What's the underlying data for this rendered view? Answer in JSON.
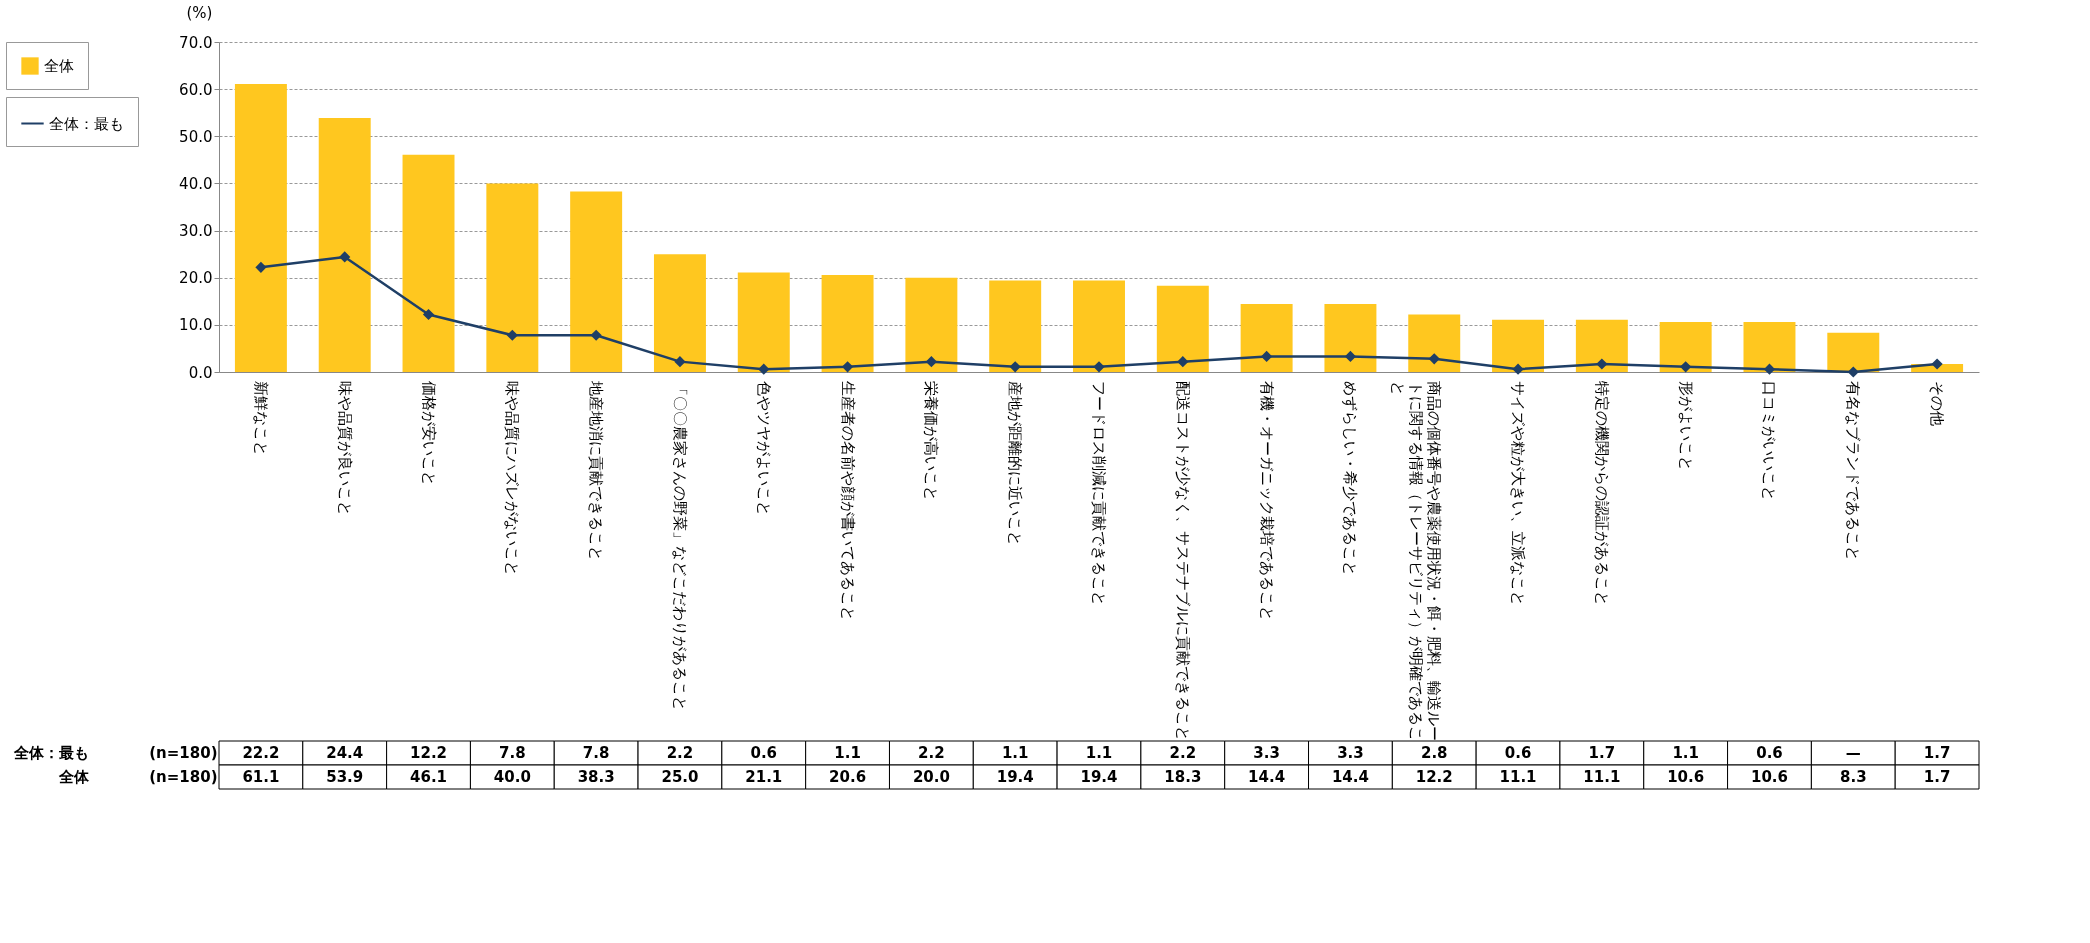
{
  "chart_data": {
    "type": "bar",
    "categories": [
      "新鮮なこと",
      "味や品質が良いこと",
      "価格が安いこと",
      "味や品質にハズレがないこと",
      "地産地消に貢献できること",
      "「〇〇農家さんの野菜」などこだわりがあること",
      "色やツヤがよいこと",
      "生産者の名前や顔が書いてあること",
      "栄養価が高いこと",
      "産地が距離的に近いこと",
      "フードロス削減に貢献できること",
      "配送コストが少なく、サステナブルに貢献できること",
      "有機・オーガニック栽培であること",
      "めずらしい・希少であること",
      "商品の個体番号や農薬使用状況・餌・肥料、輸送ルートに関する情報（トレーサビリティ）が明確であること",
      "サイズや粒が大きい、立派なこと",
      "特定の機関からの認証があること",
      "形がよいこと",
      "口コミがいいこと",
      "有名なブランドであること",
      "その他"
    ],
    "series": [
      {
        "name": "全体",
        "color": "#ffc71f",
        "values": [
          61.1,
          53.9,
          46.1,
          40.0,
          38.3,
          25.0,
          21.1,
          20.6,
          20.0,
          19.4,
          19.4,
          18.3,
          14.4,
          14.4,
          12.2,
          11.1,
          11.1,
          10.6,
          10.6,
          8.3,
          1.7
        ],
        "value_labels": [
          "61.1",
          "53.9",
          "46.1",
          "40.0",
          "38.3",
          "25.0",
          "21.1",
          "20.6",
          "20.0",
          "19.4",
          "19.4",
          "18.3",
          "14.4",
          "14.4",
          "12.2",
          "11.1",
          "11.1",
          "10.6",
          "10.6",
          "8.3",
          "1.7"
        ]
      },
      {
        "name": "全体：最も",
        "type": "line",
        "color": "#1f3f66",
        "values": [
          22.2,
          24.4,
          12.2,
          7.8,
          7.8,
          2.2,
          0.6,
          1.1,
          2.2,
          1.1,
          1.1,
          2.2,
          3.3,
          3.3,
          2.8,
          0.6,
          1.7,
          1.1,
          0.6,
          0,
          1.7
        ],
        "value_labels": [
          "22.2",
          "24.4",
          "12.2",
          "7.8",
          "7.8",
          "2.2",
          "0.6",
          "1.1",
          "2.2",
          "1.1",
          "1.1",
          "2.2",
          "3.3",
          "3.3",
          "2.8",
          "0.6",
          "1.7",
          "1.1",
          "0.6",
          "—",
          "1.7"
        ]
      }
    ],
    "ylabel": "(%)",
    "ylim": [
      0,
      70
    ],
    "yticks": [
      {
        "value": 0,
        "label": "0.0"
      },
      {
        "value": 10,
        "label": "10.0"
      },
      {
        "value": 20,
        "label": "20.0"
      },
      {
        "value": 30,
        "label": "30.0"
      },
      {
        "value": 40,
        "label": "40.0"
      },
      {
        "value": 50,
        "label": "50.0"
      },
      {
        "value": 60,
        "label": "60.0"
      },
      {
        "value": 70,
        "label": "70.0"
      }
    ],
    "annotations": [
      "(n=180)",
      "(n=180)"
    ],
    "grid": "y",
    "legend": "top left",
    "marker": "diamond",
    "line_style": "solid"
  }
}
